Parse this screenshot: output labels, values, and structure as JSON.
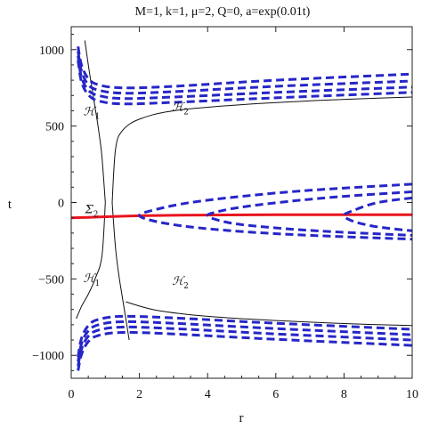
{
  "chart_data": {
    "type": "line",
    "title": "M=1, k=1, μ=2, Q=0, a=exp(0.01t)",
    "xlabel": "r",
    "ylabel": "t",
    "xlim": [
      0,
      10
    ],
    "ylim": [
      -1150,
      1150
    ],
    "x_ticks": [
      0,
      2,
      4,
      6,
      8,
      10
    ],
    "y_ticks": [
      -1000,
      -500,
      0,
      500,
      1000
    ],
    "x_tick_labels": [
      "0",
      "2",
      "4",
      "6",
      "8",
      "10"
    ],
    "y_tick_labels": [
      "−1000",
      "−500",
      "0",
      "500",
      "1000"
    ],
    "grid": false,
    "annotations": [
      {
        "main": "ℋ",
        "sub": "1",
        "x": 0.6,
        "y": 570
      },
      {
        "main": "ℋ",
        "sub": "2",
        "x": 3.2,
        "y": 600
      },
      {
        "main": "Σ",
        "sub": "2",
        "x": 0.6,
        "y": -70
      },
      {
        "main": "ℋ",
        "sub": "1",
        "x": 0.6,
        "y": -520
      },
      {
        "main": "ℋ",
        "sub": "2",
        "x": 3.2,
        "y": -540
      }
    ],
    "series": [
      {
        "role": "horizon",
        "color": "#111111",
        "style": "solid",
        "x": [
          1.0,
          0.9,
          0.8,
          0.7,
          0.6,
          0.5,
          0.4
        ],
        "y": [
          0,
          300,
          480,
          620,
          760,
          900,
          1060
        ]
      },
      {
        "role": "horizon",
        "color": "#111111",
        "style": "solid",
        "x": [
          1.2,
          1.3,
          1.5,
          2.0,
          3.0,
          5.0,
          7.0,
          9.0,
          10.0
        ],
        "y": [
          0,
          350,
          470,
          545,
          600,
          640,
          665,
          683,
          690
        ]
      },
      {
        "role": "horizon",
        "color": "#111111",
        "style": "solid",
        "x": [
          1.2,
          1.3,
          1.4,
          1.5,
          1.6,
          1.7
        ],
        "y": [
          0,
          -300,
          -480,
          -620,
          -760,
          -900
        ]
      },
      {
        "role": "horizon",
        "color": "#111111",
        "style": "solid",
        "x": [
          1.0,
          0.9,
          0.7,
          0.5,
          0.3,
          0.15
        ],
        "y": [
          0,
          -350,
          -500,
          -600,
          -680,
          -760
        ]
      },
      {
        "role": "horizon",
        "color": "#111111",
        "style": "solid",
        "x": [
          1.6,
          2.5,
          4.0,
          6.0,
          8.0,
          10.0
        ],
        "y": [
          -650,
          -705,
          -745,
          -772,
          -792,
          -805
        ]
      },
      {
        "role": "surface",
        "color": "#e8141e",
        "style": "solid",
        "x": [
          0.0,
          0.5,
          1.0,
          2.0,
          3.0,
          4.0,
          6.0,
          8.0,
          10.0
        ],
        "y": [
          -100,
          -97,
          -93,
          -87,
          -84,
          -82,
          -80,
          -80,
          -80
        ]
      },
      {
        "role": "geodesic",
        "color": "#2626c8",
        "style": "dashed",
        "x": [
          0.2,
          0.3,
          0.5,
          0.8,
          1.5,
          3.0,
          6.0,
          10.0
        ],
        "y": [
          1020,
          900,
          810,
          770,
          750,
          760,
          800,
          840
        ]
      },
      {
        "role": "geodesic",
        "color": "#2626c8",
        "style": "dashed",
        "x": [
          0.2,
          0.3,
          0.5,
          0.8,
          1.5,
          3.0,
          6.0,
          10.0
        ],
        "y": [
          990,
          860,
          770,
          735,
          715,
          725,
          760,
          795
        ]
      },
      {
        "role": "geodesic",
        "color": "#2626c8",
        "style": "dashed",
        "x": [
          0.2,
          0.3,
          0.5,
          0.8,
          1.5,
          3.0,
          6.0,
          10.0
        ],
        "y": [
          960,
          820,
          735,
          700,
          680,
          690,
          720,
          755
        ]
      },
      {
        "role": "geodesic",
        "color": "#2626c8",
        "style": "dashed",
        "x": [
          0.2,
          0.3,
          0.5,
          0.8,
          1.5,
          3.0,
          6.0,
          10.0
        ],
        "y": [
          930,
          790,
          705,
          665,
          645,
          655,
          685,
          720
        ]
      },
      {
        "role": "geodesic",
        "color": "#2626c8",
        "style": "dashed",
        "x": [
          0.2,
          0.3,
          0.5,
          0.8,
          1.5,
          3.0,
          6.0,
          10.0
        ],
        "y": [
          -1010,
          -890,
          -805,
          -765,
          -745,
          -755,
          -790,
          -830
        ]
      },
      {
        "role": "geodesic",
        "color": "#2626c8",
        "style": "dashed",
        "x": [
          0.2,
          0.3,
          0.5,
          0.8,
          1.5,
          3.0,
          6.0,
          10.0
        ],
        "y": [
          -1040,
          -925,
          -840,
          -800,
          -780,
          -790,
          -825,
          -865
        ]
      },
      {
        "role": "geodesic",
        "color": "#2626c8",
        "style": "dashed",
        "x": [
          0.2,
          0.3,
          0.5,
          0.8,
          1.5,
          3.0,
          6.0,
          10.0
        ],
        "y": [
          -1070,
          -960,
          -875,
          -835,
          -815,
          -825,
          -860,
          -900
        ]
      },
      {
        "role": "geodesic",
        "color": "#2626c8",
        "style": "dashed",
        "x": [
          0.2,
          0.3,
          0.5,
          0.8,
          1.5,
          3.0,
          6.0,
          10.0
        ],
        "y": [
          -1100,
          -995,
          -910,
          -870,
          -850,
          -860,
          -895,
          -935
        ]
      },
      {
        "role": "geodesic",
        "color": "#2626c8",
        "style": "dashed",
        "x": [
          10.0,
          7.0,
          5.0,
          3.5,
          2.5,
          2.0,
          2.5,
          3.5,
          5.0,
          7.0,
          10.0
        ],
        "y": [
          120,
          80,
          40,
          0,
          -45,
          -85,
          -125,
          -160,
          -190,
          -215,
          -240
        ]
      },
      {
        "role": "geodesic",
        "color": "#2626c8",
        "style": "dashed",
        "x": [
          10.0,
          8.0,
          6.5,
          5.0,
          4.3,
          4.0,
          4.3,
          5.0,
          6.5,
          8.0,
          10.0
        ],
        "y": [
          70,
          40,
          10,
          -30,
          -60,
          -85,
          -115,
          -145,
          -175,
          -195,
          -215
        ]
      },
      {
        "role": "geodesic",
        "color": "#2626c8",
        "style": "dashed",
        "x": [
          10.0,
          9.0,
          8.3,
          8.0,
          8.3,
          9.0,
          10.0
        ],
        "y": [
          30,
          0,
          -50,
          -85,
          -125,
          -160,
          -185
        ]
      }
    ]
  }
}
